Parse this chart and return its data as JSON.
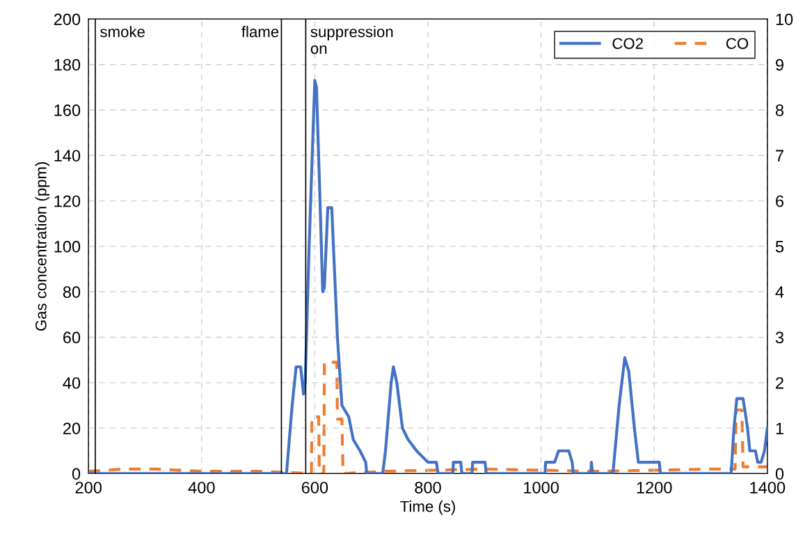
{
  "chart_data": {
    "type": "line",
    "xlabel": "Time (s)",
    "ylabel": "Gas concentration (ppm)",
    "xlim": [
      200,
      1400
    ],
    "xticks": [
      200,
      400,
      600,
      800,
      1000,
      1200,
      1400
    ],
    "ylim": [
      0,
      200
    ],
    "yticks": [
      0,
      20,
      40,
      60,
      80,
      100,
      120,
      140,
      160,
      180,
      200
    ],
    "y2lim": [
      0,
      10
    ],
    "y2ticks": [
      0,
      1,
      2,
      3,
      4,
      5,
      6,
      7,
      8,
      9,
      10
    ],
    "grid": true,
    "legend": "top right",
    "ref_lines": [
      {
        "axis": "x",
        "value": 212,
        "label": "smoke",
        "color": "#000000"
      },
      {
        "axis": "x",
        "value": 541,
        "label": "flame",
        "color": "#000000"
      },
      {
        "axis": "x",
        "value": 584,
        "label": "suppression\non",
        "color": "#000000"
      }
    ],
    "series": [
      {
        "name": "CO2",
        "color": "#4472c4",
        "line_style": "solid",
        "x": [
          200,
          550,
          560,
          567,
          575,
          580,
          583,
          590,
          600,
          603,
          608,
          614,
          617,
          623,
          630,
          640,
          648,
          660,
          668,
          680,
          690,
          692,
          720,
          725,
          735,
          739,
          745,
          755,
          765,
          780,
          800,
          815,
          818,
          844,
          845,
          858,
          860,
          878,
          879,
          901,
          903,
          1007,
          1008,
          1024,
          1031,
          1049,
          1055,
          1057,
          1088,
          1089,
          1091,
          1127,
          1138,
          1148,
          1155,
          1165,
          1172,
          1209,
          1211,
          1336,
          1341,
          1346,
          1357,
          1362,
          1365,
          1369,
          1379,
          1383,
          1389,
          1395,
          1400
        ],
        "values": [
          0,
          0,
          30,
          47,
          47,
          35,
          40,
          100,
          173,
          170,
          130,
          80,
          82,
          117,
          117,
          60,
          30,
          25,
          15,
          10,
          5,
          0,
          0,
          10,
          40,
          47,
          40,
          20,
          15,
          10,
          5,
          5,
          0,
          0,
          5,
          5,
          0,
          0,
          5,
          5,
          0,
          0,
          5,
          5,
          10,
          10,
          5,
          0,
          0,
          5,
          0,
          0,
          30,
          51,
          45,
          20,
          5,
          5,
          0,
          0,
          20,
          33,
          33,
          25,
          20,
          10,
          10,
          5,
          5,
          10,
          20
        ]
      },
      {
        "name": "CO",
        "color": "#ed7d31",
        "line_style": "dashed",
        "axis": "y2",
        "x": [
          200,
          260,
          320,
          400,
          500,
          594,
          595,
          607,
          608,
          616,
          617,
          639,
          640,
          648,
          650,
          720,
          900,
          1100,
          1300,
          1343,
          1345,
          1355,
          1357,
          1400
        ],
        "values": [
          0.05,
          0.1,
          0.1,
          0.05,
          0.05,
          0,
          1.25,
          1.25,
          0,
          0,
          2.45,
          2.45,
          1.2,
          1.2,
          0,
          0.05,
          0.1,
          0.05,
          0.1,
          0.1,
          1.4,
          1.4,
          0.15,
          0.15
        ]
      }
    ]
  }
}
